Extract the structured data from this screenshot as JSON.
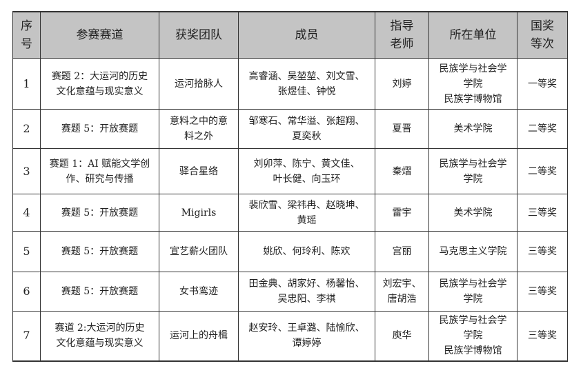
{
  "headers": [
    "序\n号",
    "参赛赛道",
    "获奖团队",
    "成员",
    "指导\n老师",
    "所在单位",
    "国奖\n等次"
  ],
  "rows": [
    {
      "no": "1",
      "track": "赛题 2：大运河的历史\n文化意蕴与现实意义",
      "team": "运河拾脉人",
      "members": "高睿涵、吴堃堃、刘文雪、\n张煜佳、钟悦",
      "advisor": "刘婷",
      "unit": "民族学与社会学\n学院\n民族学博物馆",
      "award": "一等奖"
    },
    {
      "no": "2",
      "track": "赛题 5：开放赛题",
      "team": "意料之中的意\n料之外",
      "members": "邹寒石、常华溢、张超翔、\n夏奕秋",
      "advisor": "夏晋",
      "unit": "美术学院",
      "award": "二等奖"
    },
    {
      "no": "3",
      "track": "赛题 1：AI 赋能文学创\n作、研究与传播",
      "team": "驿合星络",
      "members": "刘卯萍、陈宁、黄文佳、\n叶长健、向玉环",
      "advisor": "秦熠",
      "unit": "民族学与社会学\n学院",
      "award": "二等奖"
    },
    {
      "no": "4",
      "track": "赛题 5：开放赛题",
      "team": "Migirls",
      "members": "裴欣雪、梁祎冉、赵晓坤、\n黄瑶",
      "advisor": "雷宇",
      "unit": "美术学院",
      "award": "三等奖"
    },
    {
      "no": "5",
      "track": "赛题 5：开放赛题",
      "team": "宣艺薪火团队",
      "members": "姚欣、何玲利、陈欢",
      "advisor": "宫丽",
      "unit": "马克思主义学院",
      "award": "三等奖"
    },
    {
      "no": "6",
      "track": "赛题 5：开放赛题",
      "team": "女书鸾迹",
      "members": "田金典、胡家好、杨馨怡、\n吴忠阳、李祺",
      "advisor": "刘宏宇、\n唐胡浩",
      "unit": "民族学与社会学\n学院",
      "award": "三等奖"
    },
    {
      "no": "7",
      "track": "赛道 2:大运河的历史\n文化意蕴与现实意义",
      "team": "运河上的舟楫",
      "members": "赵安玲、王卓潞、陆愉欣、\n谭婷婷",
      "advisor": "庾华",
      "unit": "民族学与社会学\n学院\n民族学博物馆",
      "award": "三等奖"
    }
  ]
}
